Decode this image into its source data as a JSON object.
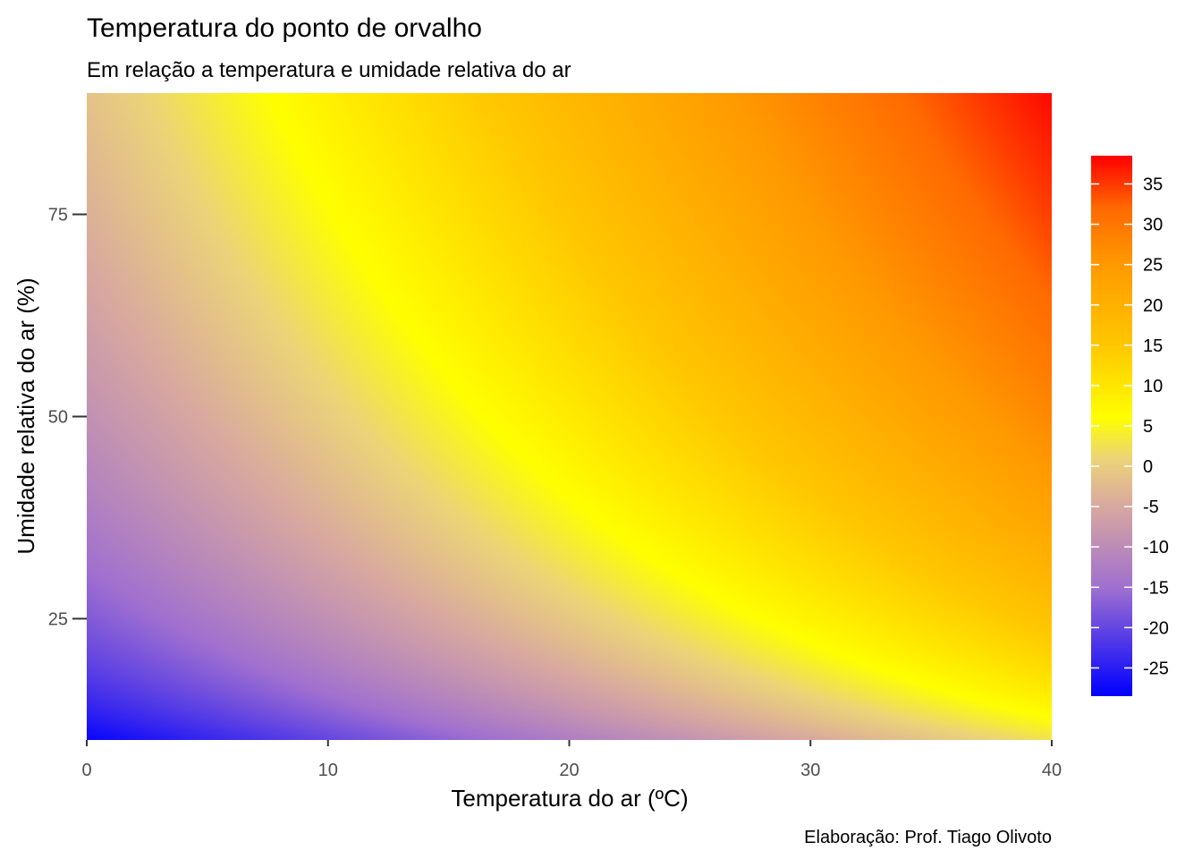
{
  "chart_data": {
    "type": "heatmap",
    "title": "Temperatura do ponto de orvalho",
    "subtitle": "Em relação a temperatura e umidade relativa do ar",
    "caption": "Elaboração: Prof. Tiago Olivoto",
    "xlabel": "Temperatura do ar (ºC)",
    "ylabel": "Umidade relativa do ar (%)",
    "xlim": [
      0,
      40
    ],
    "ylim": [
      10,
      90
    ],
    "x_ticks": [
      0,
      10,
      20,
      30,
      40
    ],
    "y_ticks": [
      25,
      50,
      75
    ],
    "x_tick_labels": [
      "0",
      "10",
      "20",
      "30",
      "40"
    ],
    "y_tick_labels": [
      "25",
      "50",
      "75"
    ],
    "value_range": [
      -28.5,
      38.5
    ],
    "legend": {
      "position": "right",
      "ticks": [
        35,
        30,
        25,
        20,
        15,
        10,
        5,
        0,
        -5,
        -10,
        -15,
        -20,
        -25
      ],
      "tick_labels": [
        "35",
        "30",
        "25",
        "20",
        "15",
        "10",
        "5",
        "0",
        "-5",
        "-10",
        "-15",
        "-20",
        "-25"
      ]
    },
    "color_scale": [
      {
        "value": -28.5,
        "color": "#0000ff"
      },
      {
        "value": -15,
        "color": "#a070d0"
      },
      {
        "value": -5,
        "color": "#d8a8a0"
      },
      {
        "value": 1,
        "color": "#ecd478"
      },
      {
        "value": 6,
        "color": "#ffff00"
      },
      {
        "value": 15,
        "color": "#ffc800"
      },
      {
        "value": 25,
        "color": "#ff9a00"
      },
      {
        "value": 32,
        "color": "#ff6a00"
      },
      {
        "value": 38.5,
        "color": "#ff0000"
      }
    ],
    "grid": false
  }
}
